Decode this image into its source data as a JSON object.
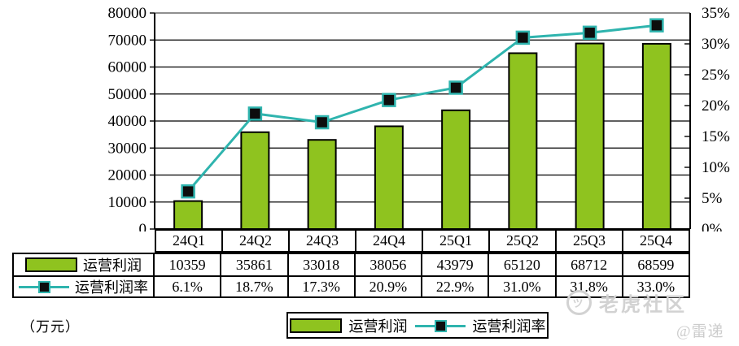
{
  "chart_data": {
    "type": "bar",
    "subtype": "bar+line combo",
    "categories": [
      "24Q1",
      "24Q2",
      "24Q3",
      "24Q4",
      "25Q1",
      "25Q2",
      "25Q3",
      "25Q4"
    ],
    "series": [
      {
        "name": "运营利润",
        "type": "bar",
        "axis": "left",
        "color": "#8fc31f",
        "values": [
          10359,
          35861,
          33018,
          38056,
          43979,
          65120,
          68712,
          68599
        ]
      },
      {
        "name": "运营利润率",
        "type": "line",
        "axis": "right",
        "color": "#2fb4ae",
        "marker": "black-square",
        "values": [
          6.1,
          18.7,
          17.3,
          20.9,
          22.9,
          31.0,
          31.8,
          33.0
        ]
      }
    ],
    "left_axis": {
      "min": 0,
      "max": 80000,
      "step": 10000,
      "ticks": [
        "0",
        "10000",
        "20000",
        "30000",
        "40000",
        "50000",
        "60000",
        "70000",
        "80000"
      ]
    },
    "right_axis": {
      "min": 0,
      "max": 35,
      "step": 5,
      "ticks": [
        "0%",
        "5%",
        "10%",
        "15%",
        "20%",
        "25%",
        "30%",
        "35%"
      ]
    },
    "unit_label": "（万元）",
    "grid": "horizontal",
    "legend_position": "bottom-center"
  },
  "table": {
    "categories": [
      "24Q1",
      "24Q2",
      "24Q3",
      "24Q4",
      "25Q1",
      "25Q2",
      "25Q3",
      "25Q4"
    ],
    "rows": [
      {
        "label": "运营利润",
        "swatch": "bar",
        "values": [
          "10359",
          "35861",
          "33018",
          "38056",
          "43979",
          "65120",
          "68712",
          "68599"
        ]
      },
      {
        "label": "运营利润率",
        "swatch": "line-marker",
        "values": [
          "6.1%",
          "18.7%",
          "17.3%",
          "20.9%",
          "22.9%",
          "31.0%",
          "31.8%",
          "33.0%"
        ]
      }
    ]
  },
  "legend": {
    "items": [
      {
        "label": "运营利润",
        "swatch": "bar"
      },
      {
        "label": "运营利润率",
        "swatch": "line-marker"
      }
    ]
  },
  "watermark": {
    "brand": "老虎社区",
    "handle": "@雷递",
    "logo": "tiger-community-logo"
  },
  "colors": {
    "bar_fill": "#8fc31f",
    "bar_border": "#000000",
    "line": "#2fb4ae",
    "marker_fill": "#0d0d0d",
    "grid": "#000000",
    "top_border": "#8f8f8f",
    "background": "#ffffff"
  }
}
